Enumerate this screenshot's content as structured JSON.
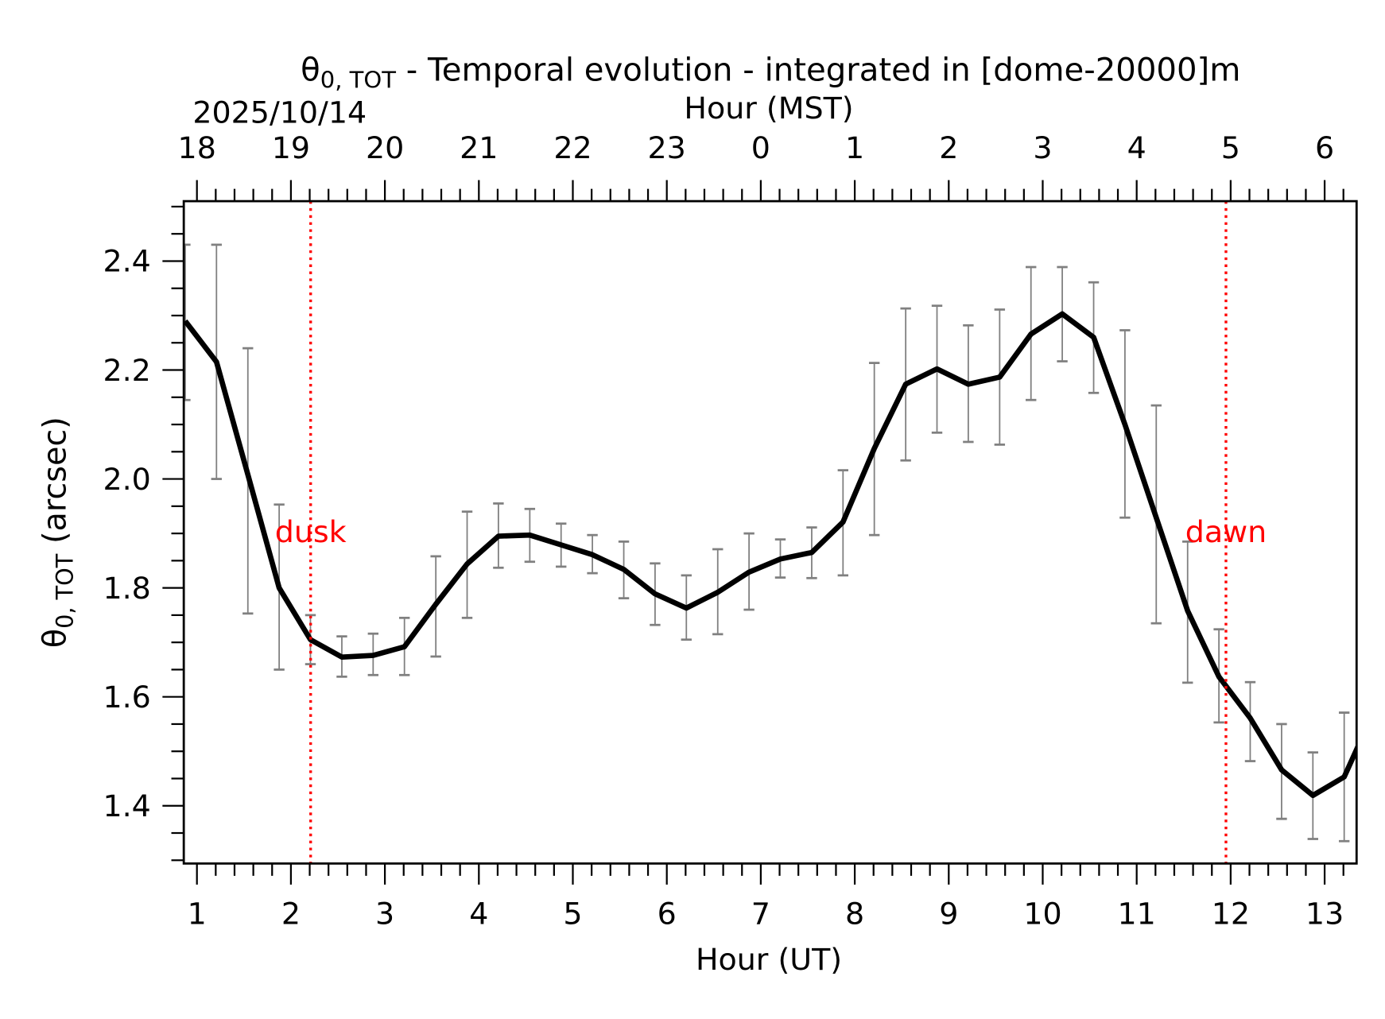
{
  "chart_data": {
    "type": "line",
    "title": {
      "symbol": "θ",
      "subscript": "0, TOT",
      "rest": " - Temporal evolution - integrated in [dome-20000]m"
    },
    "date_label": "2025/10/14",
    "xlabel": "Hour (UT)",
    "top_xlabel": "Hour (MST)",
    "ylabel": {
      "symbol": "θ",
      "subscript": "0, TOT",
      "rest": " (arcsec)"
    },
    "xlim": [
      0.86,
      13.34
    ],
    "ylim": [
      1.294,
      2.51
    ],
    "x_ticks": [
      1,
      2,
      3,
      4,
      5,
      6,
      7,
      8,
      9,
      10,
      11,
      12,
      13
    ],
    "x_tick_labels": [
      "1",
      "2",
      "3",
      "4",
      "5",
      "6",
      "7",
      "8",
      "9",
      "10",
      "11",
      "12",
      "13"
    ],
    "top_x_tick_labels": [
      "18",
      "19",
      "20",
      "21",
      "22",
      "23",
      "0",
      "1",
      "2",
      "3",
      "4",
      "5",
      "6"
    ],
    "y_ticks": [
      1.4,
      1.6,
      1.8,
      2.0,
      2.2,
      2.4
    ],
    "y_tick_labels": [
      "1.4",
      "1.6",
      "1.8",
      "2.0",
      "2.2",
      "2.4"
    ],
    "grid": false,
    "line_color": "#000000",
    "errorbar_color": "#808080",
    "marker_color": "#ff0000",
    "annotations": [
      {
        "label": "dusk",
        "x": 2.21
      },
      {
        "label": "dawn",
        "x": 11.95
      }
    ],
    "series": [
      {
        "x": [
          0.875,
          1.208,
          1.542,
          1.875,
          2.208,
          2.542,
          2.875,
          3.208,
          3.542,
          3.875,
          4.208,
          4.542,
          4.875,
          5.208,
          5.542,
          5.875,
          6.208,
          6.542,
          6.875,
          7.208,
          7.542,
          7.875,
          8.208,
          8.542,
          8.875,
          9.208,
          9.542,
          9.875,
          10.208,
          10.542,
          10.875,
          11.208,
          11.542,
          11.875,
          12.208,
          12.542,
          12.875,
          13.208,
          13.542
        ],
        "y": [
          2.29,
          2.215,
          2.008,
          1.8,
          1.705,
          1.673,
          1.676,
          1.692,
          1.77,
          1.844,
          1.895,
          1.897,
          1.879,
          1.861,
          1.834,
          1.789,
          1.763,
          1.792,
          1.829,
          1.853,
          1.865,
          1.921,
          2.056,
          2.174,
          2.202,
          2.174,
          2.187,
          2.266,
          2.303,
          2.26,
          2.1,
          1.929,
          1.758,
          1.637,
          1.561,
          1.466,
          1.419,
          1.453,
          1.58
        ],
        "err_high": [
          2.43,
          2.43,
          2.24,
          1.953,
          1.75,
          1.711,
          1.716,
          1.745,
          1.858,
          1.94,
          1.955,
          1.945,
          1.918,
          1.897,
          1.885,
          1.845,
          1.823,
          1.871,
          1.9,
          1.889,
          1.911,
          2.016,
          2.213,
          2.313,
          2.318,
          2.282,
          2.311,
          2.389,
          2.389,
          2.361,
          2.273,
          2.135,
          1.885,
          1.724,
          1.627,
          1.55,
          1.498,
          1.571,
          null
        ],
        "err_low": [
          2.145,
          2.0,
          1.753,
          1.65,
          1.66,
          1.637,
          1.64,
          1.64,
          1.674,
          1.745,
          1.837,
          1.848,
          1.839,
          1.827,
          1.781,
          1.732,
          1.705,
          1.715,
          1.76,
          1.819,
          1.818,
          1.823,
          1.897,
          2.034,
          2.085,
          2.068,
          2.063,
          2.145,
          2.216,
          2.158,
          1.929,
          1.735,
          1.626,
          1.553,
          1.482,
          1.376,
          1.339,
          1.335,
          null
        ]
      }
    ]
  }
}
